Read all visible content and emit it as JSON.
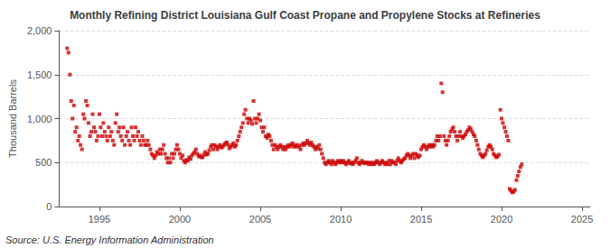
{
  "chart_data": {
    "type": "scatter",
    "title": "Monthly Refining District Louisiana Gulf Coast Propane and Propylene Stocks at Refineries",
    "y_label": "Thousand Barrels",
    "annotations": [
      "Source: U.S. Energy Information Administration"
    ],
    "color": "#cc0000",
    "marker": "square",
    "grid": true,
    "xlim": [
      1992.5,
      2025.5
    ],
    "xticks": [
      1995,
      2000,
      2005,
      2010,
      2015,
      2020,
      2025
    ],
    "ylim": [
      0,
      2000
    ],
    "yticks": [
      0,
      500,
      {
        "value": 1000,
        "label": "1,000"
      },
      {
        "value": 1500,
        "label": "1,500"
      },
      {
        "value": 2000,
        "label": "2,000"
      }
    ],
    "x": [
      1993.0,
      1993.08,
      1993.17,
      1993.25,
      1993.33,
      1993.42,
      1993.5,
      1993.58,
      1993.67,
      1993.75,
      1993.83,
      1993.92,
      1994.0,
      1994.08,
      1994.17,
      1994.25,
      1994.33,
      1994.42,
      1994.5,
      1994.58,
      1994.67,
      1994.75,
      1994.83,
      1994.92,
      1995.0,
      1995.08,
      1995.17,
      1995.25,
      1995.33,
      1995.42,
      1995.5,
      1995.58,
      1995.67,
      1995.75,
      1995.83,
      1995.92,
      1996.0,
      1996.08,
      1996.17,
      1996.25,
      1996.33,
      1996.42,
      1996.5,
      1996.58,
      1996.67,
      1996.75,
      1996.83,
      1996.92,
      1997.0,
      1997.08,
      1997.17,
      1997.25,
      1997.33,
      1997.42,
      1997.5,
      1997.58,
      1997.67,
      1997.75,
      1997.83,
      1997.92,
      1998.0,
      1998.08,
      1998.17,
      1998.25,
      1998.33,
      1998.42,
      1998.5,
      1998.58,
      1998.67,
      1998.75,
      1998.83,
      1998.92,
      1999.0,
      1999.08,
      1999.17,
      1999.25,
      1999.33,
      1999.42,
      1999.5,
      1999.58,
      1999.67,
      1999.75,
      1999.83,
      1999.92,
      2000.0,
      2000.08,
      2000.17,
      2000.25,
      2000.33,
      2000.42,
      2000.5,
      2000.58,
      2000.67,
      2000.75,
      2000.83,
      2000.92,
      2001.0,
      2001.08,
      2001.17,
      2001.25,
      2001.33,
      2001.42,
      2001.5,
      2001.58,
      2001.67,
      2001.75,
      2001.83,
      2001.92,
      2002.0,
      2002.08,
      2002.17,
      2002.25,
      2002.33,
      2002.42,
      2002.5,
      2002.58,
      2002.67,
      2002.75,
      2002.83,
      2002.92,
      2003.0,
      2003.08,
      2003.17,
      2003.25,
      2003.33,
      2003.42,
      2003.5,
      2003.58,
      2003.67,
      2003.75,
      2003.83,
      2003.92,
      2004.0,
      2004.08,
      2004.17,
      2004.25,
      2004.33,
      2004.42,
      2004.5,
      2004.58,
      2004.67,
      2004.75,
      2004.83,
      2004.92,
      2005.0,
      2005.08,
      2005.17,
      2005.25,
      2005.33,
      2005.42,
      2005.5,
      2005.58,
      2005.67,
      2005.75,
      2005.83,
      2005.92,
      2006.0,
      2006.08,
      2006.17,
      2006.25,
      2006.33,
      2006.42,
      2006.5,
      2006.58,
      2006.67,
      2006.75,
      2006.83,
      2006.92,
      2007.0,
      2007.08,
      2007.17,
      2007.25,
      2007.33,
      2007.42,
      2007.5,
      2007.58,
      2007.67,
      2007.75,
      2007.83,
      2007.92,
      2008.0,
      2008.08,
      2008.17,
      2008.25,
      2008.33,
      2008.42,
      2008.5,
      2008.58,
      2008.67,
      2008.75,
      2008.83,
      2008.92,
      2009.0,
      2009.08,
      2009.17,
      2009.25,
      2009.33,
      2009.42,
      2009.5,
      2009.58,
      2009.67,
      2009.75,
      2009.83,
      2009.92,
      2010.0,
      2010.08,
      2010.17,
      2010.25,
      2010.33,
      2010.42,
      2010.5,
      2010.58,
      2010.67,
      2010.75,
      2010.83,
      2010.92,
      2011.0,
      2011.08,
      2011.17,
      2011.25,
      2011.33,
      2011.42,
      2011.5,
      2011.58,
      2011.67,
      2011.75,
      2011.83,
      2011.92,
      2012.0,
      2012.08,
      2012.17,
      2012.25,
      2012.33,
      2012.42,
      2012.5,
      2012.58,
      2012.67,
      2012.75,
      2012.83,
      2012.92,
      2013.0,
      2013.08,
      2013.17,
      2013.25,
      2013.33,
      2013.42,
      2013.5,
      2013.58,
      2013.67,
      2013.75,
      2013.83,
      2013.92,
      2014.0,
      2014.08,
      2014.17,
      2014.25,
      2014.33,
      2014.42,
      2014.5,
      2014.58,
      2014.67,
      2014.75,
      2014.83,
      2014.92,
      2015.0,
      2015.08,
      2015.17,
      2015.25,
      2015.33,
      2015.42,
      2015.5,
      2015.58,
      2015.67,
      2015.75,
      2015.83,
      2015.92,
      2016.0,
      2016.08,
      2016.17,
      2016.25,
      2016.33,
      2016.42,
      2016.5,
      2016.58,
      2016.67,
      2016.75,
      2016.83,
      2016.92,
      2017.0,
      2017.08,
      2017.17,
      2017.25,
      2017.33,
      2017.42,
      2017.5,
      2017.58,
      2017.67,
      2017.75,
      2017.83,
      2017.92,
      2018.0,
      2018.08,
      2018.17,
      2018.25,
      2018.33,
      2018.42,
      2018.5,
      2018.58,
      2018.67,
      2018.75,
      2018.83,
      2018.92,
      2019.0,
      2019.08,
      2019.17,
      2019.25,
      2019.33,
      2019.42,
      2019.5,
      2019.58,
      2019.67,
      2019.75,
      2019.83,
      2019.92,
      2020.0,
      2020.08,
      2020.17,
      2020.25,
      2020.33,
      2020.42,
      2020.5,
      2020.58,
      2020.67,
      2020.75,
      2020.83,
      2020.92,
      2021.0,
      2021.08,
      2021.17,
      2021.25
    ],
    "values": [
      1800,
      1750,
      1500,
      1200,
      1000,
      1150,
      850,
      900,
      750,
      800,
      700,
      650,
      1050,
      1000,
      1200,
      1150,
      950,
      800,
      850,
      1050,
      900,
      850,
      750,
      800,
      1050,
      900,
      800,
      950,
      850,
      800,
      750,
      900,
      800,
      850,
      750,
      700,
      950,
      1050,
      850,
      900,
      800,
      750,
      900,
      700,
      800,
      850,
      750,
      700,
      900,
      800,
      750,
      900,
      800,
      850,
      750,
      700,
      800,
      750,
      700,
      700,
      750,
      700,
      650,
      600,
      580,
      550,
      580,
      620,
      600,
      650,
      600,
      650,
      700,
      600,
      550,
      500,
      550,
      500,
      600,
      550,
      600,
      650,
      700,
      650,
      600,
      550,
      580,
      520,
      500,
      530,
      520,
      560,
      540,
      580,
      600,
      620,
      650,
      600,
      570,
      580,
      560,
      560,
      590,
      620,
      590,
      600,
      640,
      680,
      700,
      650,
      700,
      680,
      650,
      680,
      700,
      670,
      680,
      700,
      720,
      730,
      700,
      660,
      680,
      700,
      720,
      680,
      700,
      750,
      800,
      850,
      900,
      950,
      1050,
      1100,
      1000,
      950,
      1000,
      980,
      940,
      1200,
      1000,
      950,
      1000,
      1050,
      980,
      900,
      850,
      900,
      800,
      780,
      820,
      800,
      750,
      700,
      650,
      700,
      680,
      650,
      680,
      700,
      680,
      650,
      680,
      650,
      680,
      700,
      680,
      700,
      720,
      680,
      700,
      680,
      700,
      680,
      650,
      700,
      720,
      700,
      720,
      750,
      720,
      700,
      730,
      700,
      680,
      650,
      680,
      660,
      700,
      650,
      600,
      550,
      500,
      480,
      500,
      520,
      500,
      480,
      520,
      500,
      480,
      500,
      520,
      500,
      520,
      500,
      520,
      500,
      480,
      500,
      520,
      490,
      500,
      480,
      500,
      520,
      550,
      500,
      480,
      500,
      520,
      500,
      490,
      500,
      500,
      480,
      500,
      480,
      500,
      480,
      500,
      520,
      500,
      480,
      500,
      520,
      500,
      480,
      500,
      480,
      520,
      480,
      520,
      500,
      500,
      480,
      520,
      550,
      520,
      500,
      520,
      540,
      550,
      580,
      600,
      580,
      550,
      580,
      600,
      550,
      600,
      580,
      560,
      580,
      650,
      680,
      700,
      680,
      650,
      680,
      700,
      680,
      700,
      680,
      700,
      750,
      800,
      750,
      800,
      1400,
      1300,
      800,
      750,
      700,
      750,
      800,
      850,
      880,
      900,
      850,
      800,
      750,
      800,
      850,
      800,
      780,
      800,
      820,
      850,
      870,
      900,
      880,
      850,
      820,
      800,
      750,
      700,
      650,
      600,
      580,
      560,
      580,
      600,
      640,
      680,
      700,
      680,
      650,
      600,
      580,
      560,
      570,
      590,
      1100,
      1000,
      950,
      900,
      850,
      800,
      750,
      200,
      180,
      160,
      170,
      190,
      300,
      350,
      400,
      450,
      480
    ]
  }
}
